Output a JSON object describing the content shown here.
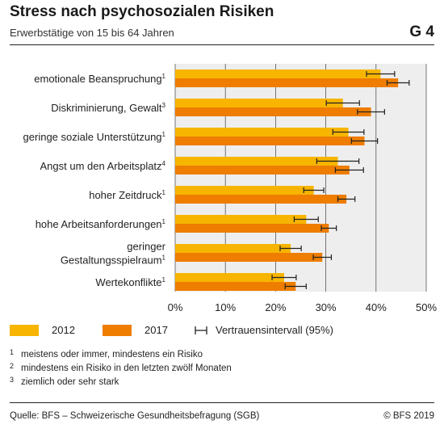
{
  "header": {
    "title": "Stress nach psychosozialen Risiken",
    "subtitle": "Erwerbstätige von 15 bis 64 Jahren",
    "figure_id": "G 4"
  },
  "chart_data": {
    "type": "bar",
    "orientation": "horizontal",
    "categories": [
      {
        "label": "emotionale Beanspruchung",
        "sup": "1"
      },
      {
        "label": "Diskriminierung, Gewalt",
        "sup": "3"
      },
      {
        "label": "geringe soziale Unterstützung",
        "sup": "1"
      },
      {
        "label": "Angst um den Arbeitsplatz",
        "sup": "4"
      },
      {
        "label": "hoher Zeitdruck",
        "sup": "1"
      },
      {
        "label": "hohe Arbeitsanforderungen",
        "sup": "1"
      },
      {
        "label": "geringer Gestaltungsspielraum",
        "label_lines": [
          "geringer",
          "Gestaltungsspielraum"
        ],
        "sup": "1"
      },
      {
        "label": "Wertekonflikte",
        "sup": "1"
      }
    ],
    "series": [
      {
        "name": "2012",
        "color": "#f7b500",
        "values": [
          40.9,
          33.4,
          34.5,
          32.4,
          27.6,
          26.1,
          23.0,
          21.7
        ],
        "ci": [
          [
            38.1,
            43.7
          ],
          [
            30.1,
            36.7
          ],
          [
            31.4,
            37.6
          ],
          [
            28.2,
            36.6
          ],
          [
            25.6,
            29.6
          ],
          [
            23.7,
            28.5
          ],
          [
            20.9,
            25.1
          ],
          [
            19.3,
            24.1
          ]
        ]
      },
      {
        "name": "2017",
        "color": "#ee7d00",
        "values": [
          44.4,
          39.0,
          37.7,
          34.7,
          34.1,
          30.6,
          29.3,
          24.0
        ],
        "ci": [
          [
            42.2,
            46.6
          ],
          [
            36.3,
            41.7
          ],
          [
            35.1,
            40.3
          ],
          [
            31.9,
            37.5
          ],
          [
            32.4,
            35.8
          ],
          [
            29.1,
            32.1
          ],
          [
            27.5,
            31.1
          ],
          [
            21.9,
            26.1
          ]
        ]
      }
    ],
    "xlim": [
      0,
      50
    ],
    "xticks": [
      "0%",
      "10%",
      "20%",
      "30%",
      "40%",
      "50%"
    ],
    "grid": true,
    "legend_position": "bottom",
    "ci_legend_label": "Vertrauensintervall (95%)"
  },
  "footnotes": [
    {
      "num": "1",
      "text": "meistens oder immer, mindestens ein Risiko"
    },
    {
      "num": "2",
      "text": "mindestens ein Risiko in den letzten zwölf Monaten"
    },
    {
      "num": "3",
      "text": "ziemlich oder sehr stark"
    }
  ],
  "footer": {
    "source": "Quelle: BFS – Schweizerische Gesundheitsbefragung (SGB)",
    "copyright": "© BFS 2019"
  }
}
